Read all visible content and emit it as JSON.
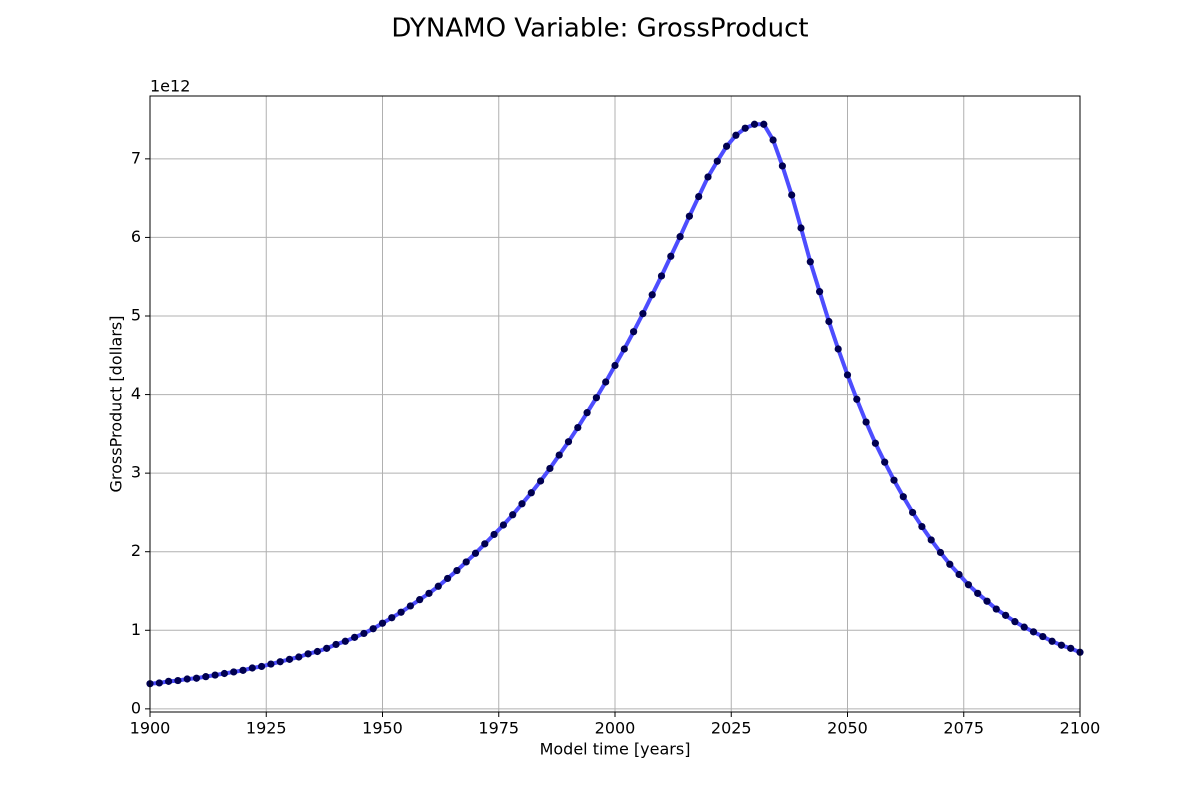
{
  "chart_data": {
    "type": "line",
    "title": "DYNAMO Variable: GrossProduct",
    "x_label": "Model time [years]",
    "y_label": "GrossProduct [dollars]",
    "y_offset_text": "1e12",
    "x": [
      1900,
      1902,
      1904,
      1906,
      1908,
      1910,
      1912,
      1914,
      1916,
      1918,
      1920,
      1922,
      1924,
      1926,
      1928,
      1930,
      1932,
      1934,
      1936,
      1938,
      1940,
      1942,
      1944,
      1946,
      1948,
      1950,
      1952,
      1954,
      1956,
      1958,
      1960,
      1962,
      1964,
      1966,
      1968,
      1970,
      1972,
      1974,
      1976,
      1978,
      1980,
      1982,
      1984,
      1986,
      1988,
      1990,
      1992,
      1994,
      1996,
      1998,
      2000,
      2002,
      2004,
      2006,
      2008,
      2010,
      2012,
      2014,
      2016,
      2018,
      2020,
      2022,
      2024,
      2026,
      2028,
      2030,
      2032,
      2034,
      2036,
      2038,
      2040,
      2042,
      2044,
      2046,
      2048,
      2050,
      2052,
      2054,
      2056,
      2058,
      2060,
      2062,
      2064,
      2066,
      2068,
      2070,
      2072,
      2074,
      2076,
      2078,
      2080,
      2082,
      2084,
      2086,
      2088,
      2090,
      2092,
      2094,
      2096,
      2098,
      2100
    ],
    "series": [
      {
        "name": "GrossProduct",
        "color": "#4d4dff",
        "marker_color": "#000050",
        "values": [
          0.32,
          0.33,
          0.35,
          0.36,
          0.38,
          0.39,
          0.41,
          0.43,
          0.45,
          0.47,
          0.49,
          0.52,
          0.54,
          0.57,
          0.6,
          0.63,
          0.66,
          0.7,
          0.73,
          0.77,
          0.82,
          0.86,
          0.91,
          0.96,
          1.02,
          1.09,
          1.16,
          1.23,
          1.31,
          1.39,
          1.47,
          1.56,
          1.66,
          1.76,
          1.87,
          1.98,
          2.1,
          2.22,
          2.34,
          2.47,
          2.61,
          2.75,
          2.9,
          3.06,
          3.23,
          3.4,
          3.58,
          3.77,
          3.96,
          4.16,
          4.37,
          4.58,
          4.8,
          5.03,
          5.27,
          5.51,
          5.76,
          6.01,
          6.27,
          6.52,
          6.77,
          6.97,
          7.16,
          7.3,
          7.39,
          7.44,
          7.44,
          7.24,
          6.91,
          6.54,
          6.12,
          5.69,
          5.31,
          4.93,
          4.58,
          4.25,
          3.94,
          3.65,
          3.38,
          3.14,
          2.91,
          2.7,
          2.5,
          2.32,
          2.15,
          1.99,
          1.84,
          1.71,
          1.58,
          1.47,
          1.37,
          1.27,
          1.19,
          1.11,
          1.04,
          0.98,
          0.92,
          0.86,
          0.81,
          0.77,
          0.72
        ]
      }
    ],
    "xlim": [
      1900,
      2100
    ],
    "xticks": [
      1900,
      1925,
      1950,
      1975,
      2000,
      2025,
      2050,
      2075,
      2100
    ],
    "ylim": [
      -0.04,
      7.8
    ],
    "yticks": [
      0,
      1,
      2,
      3,
      4,
      5,
      6,
      7
    ],
    "grid": true
  }
}
